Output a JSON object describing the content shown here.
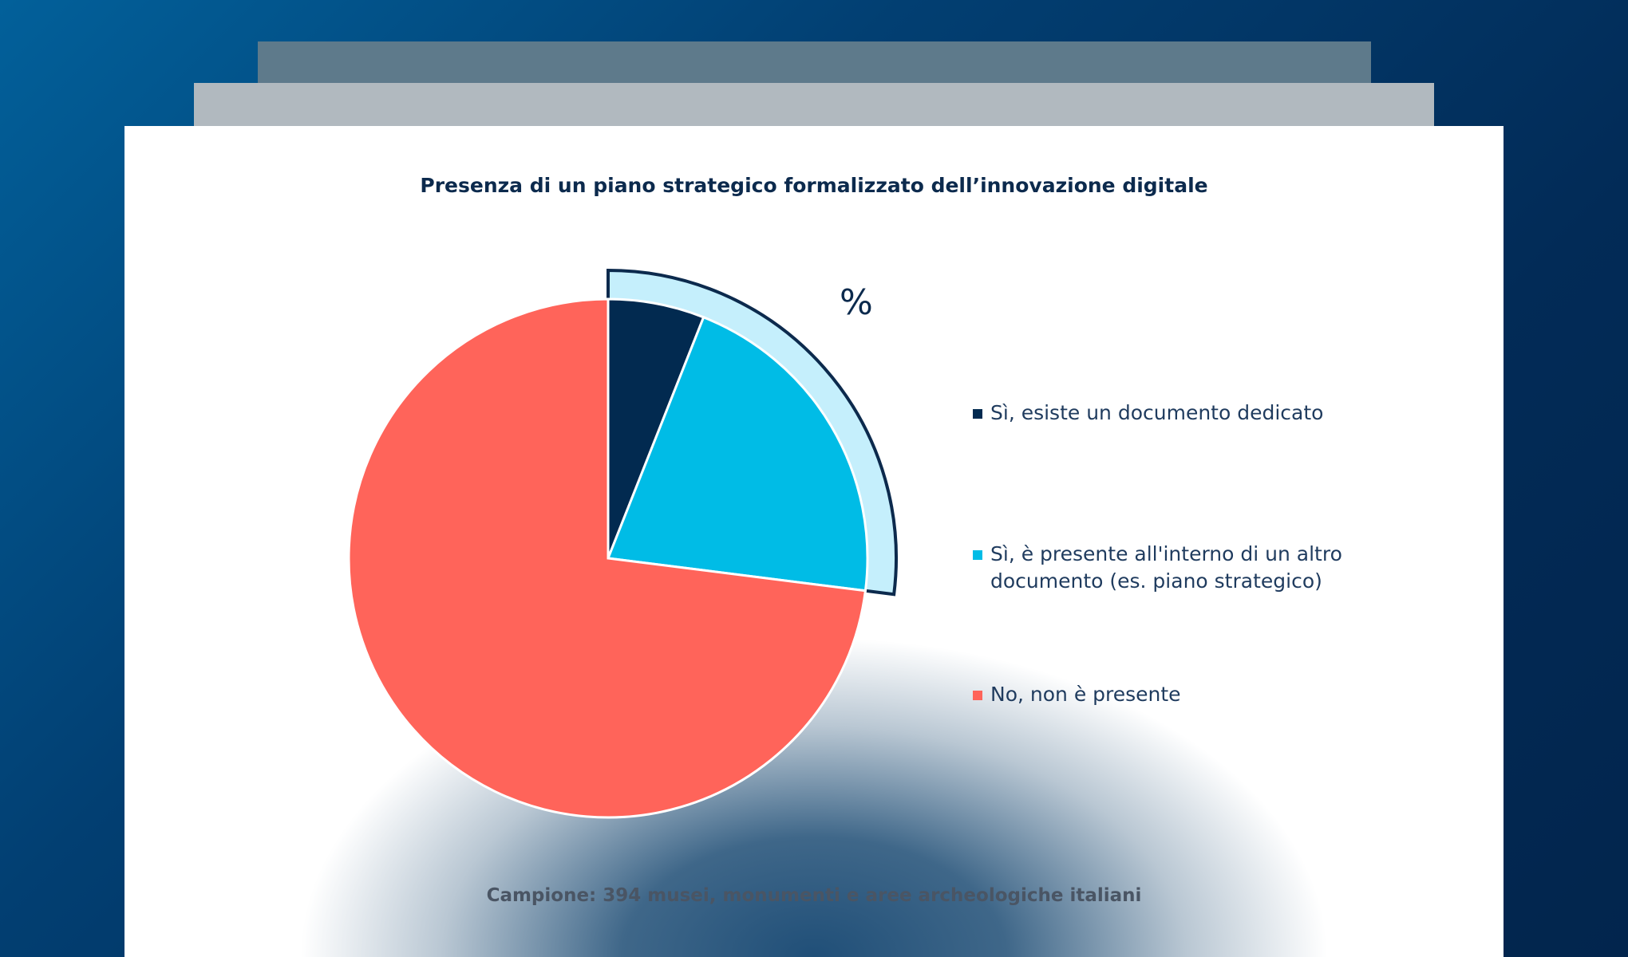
{
  "chart_data": {
    "type": "pie",
    "title": "Presenza di un piano strategico formalizzato dell’innovazione digitale",
    "unit_label": "%",
    "categories": [
      "Sì, esiste un documento dedicato",
      "Sì, è presente all'interno di un altro documento (es. piano strategico)",
      "No, non è presente"
    ],
    "values": [
      6,
      21,
      73
    ],
    "colors": [
      "#022a50",
      "#00bce6",
      "#ff645a"
    ],
    "highlight": {
      "slices": [
        0,
        1
      ],
      "fill": "#c5effc",
      "stroke": "#0c2a4d"
    },
    "legend_position": "right",
    "footnote": "Campione: 394 musei, monumenti e aree archeologiche italiani"
  }
}
